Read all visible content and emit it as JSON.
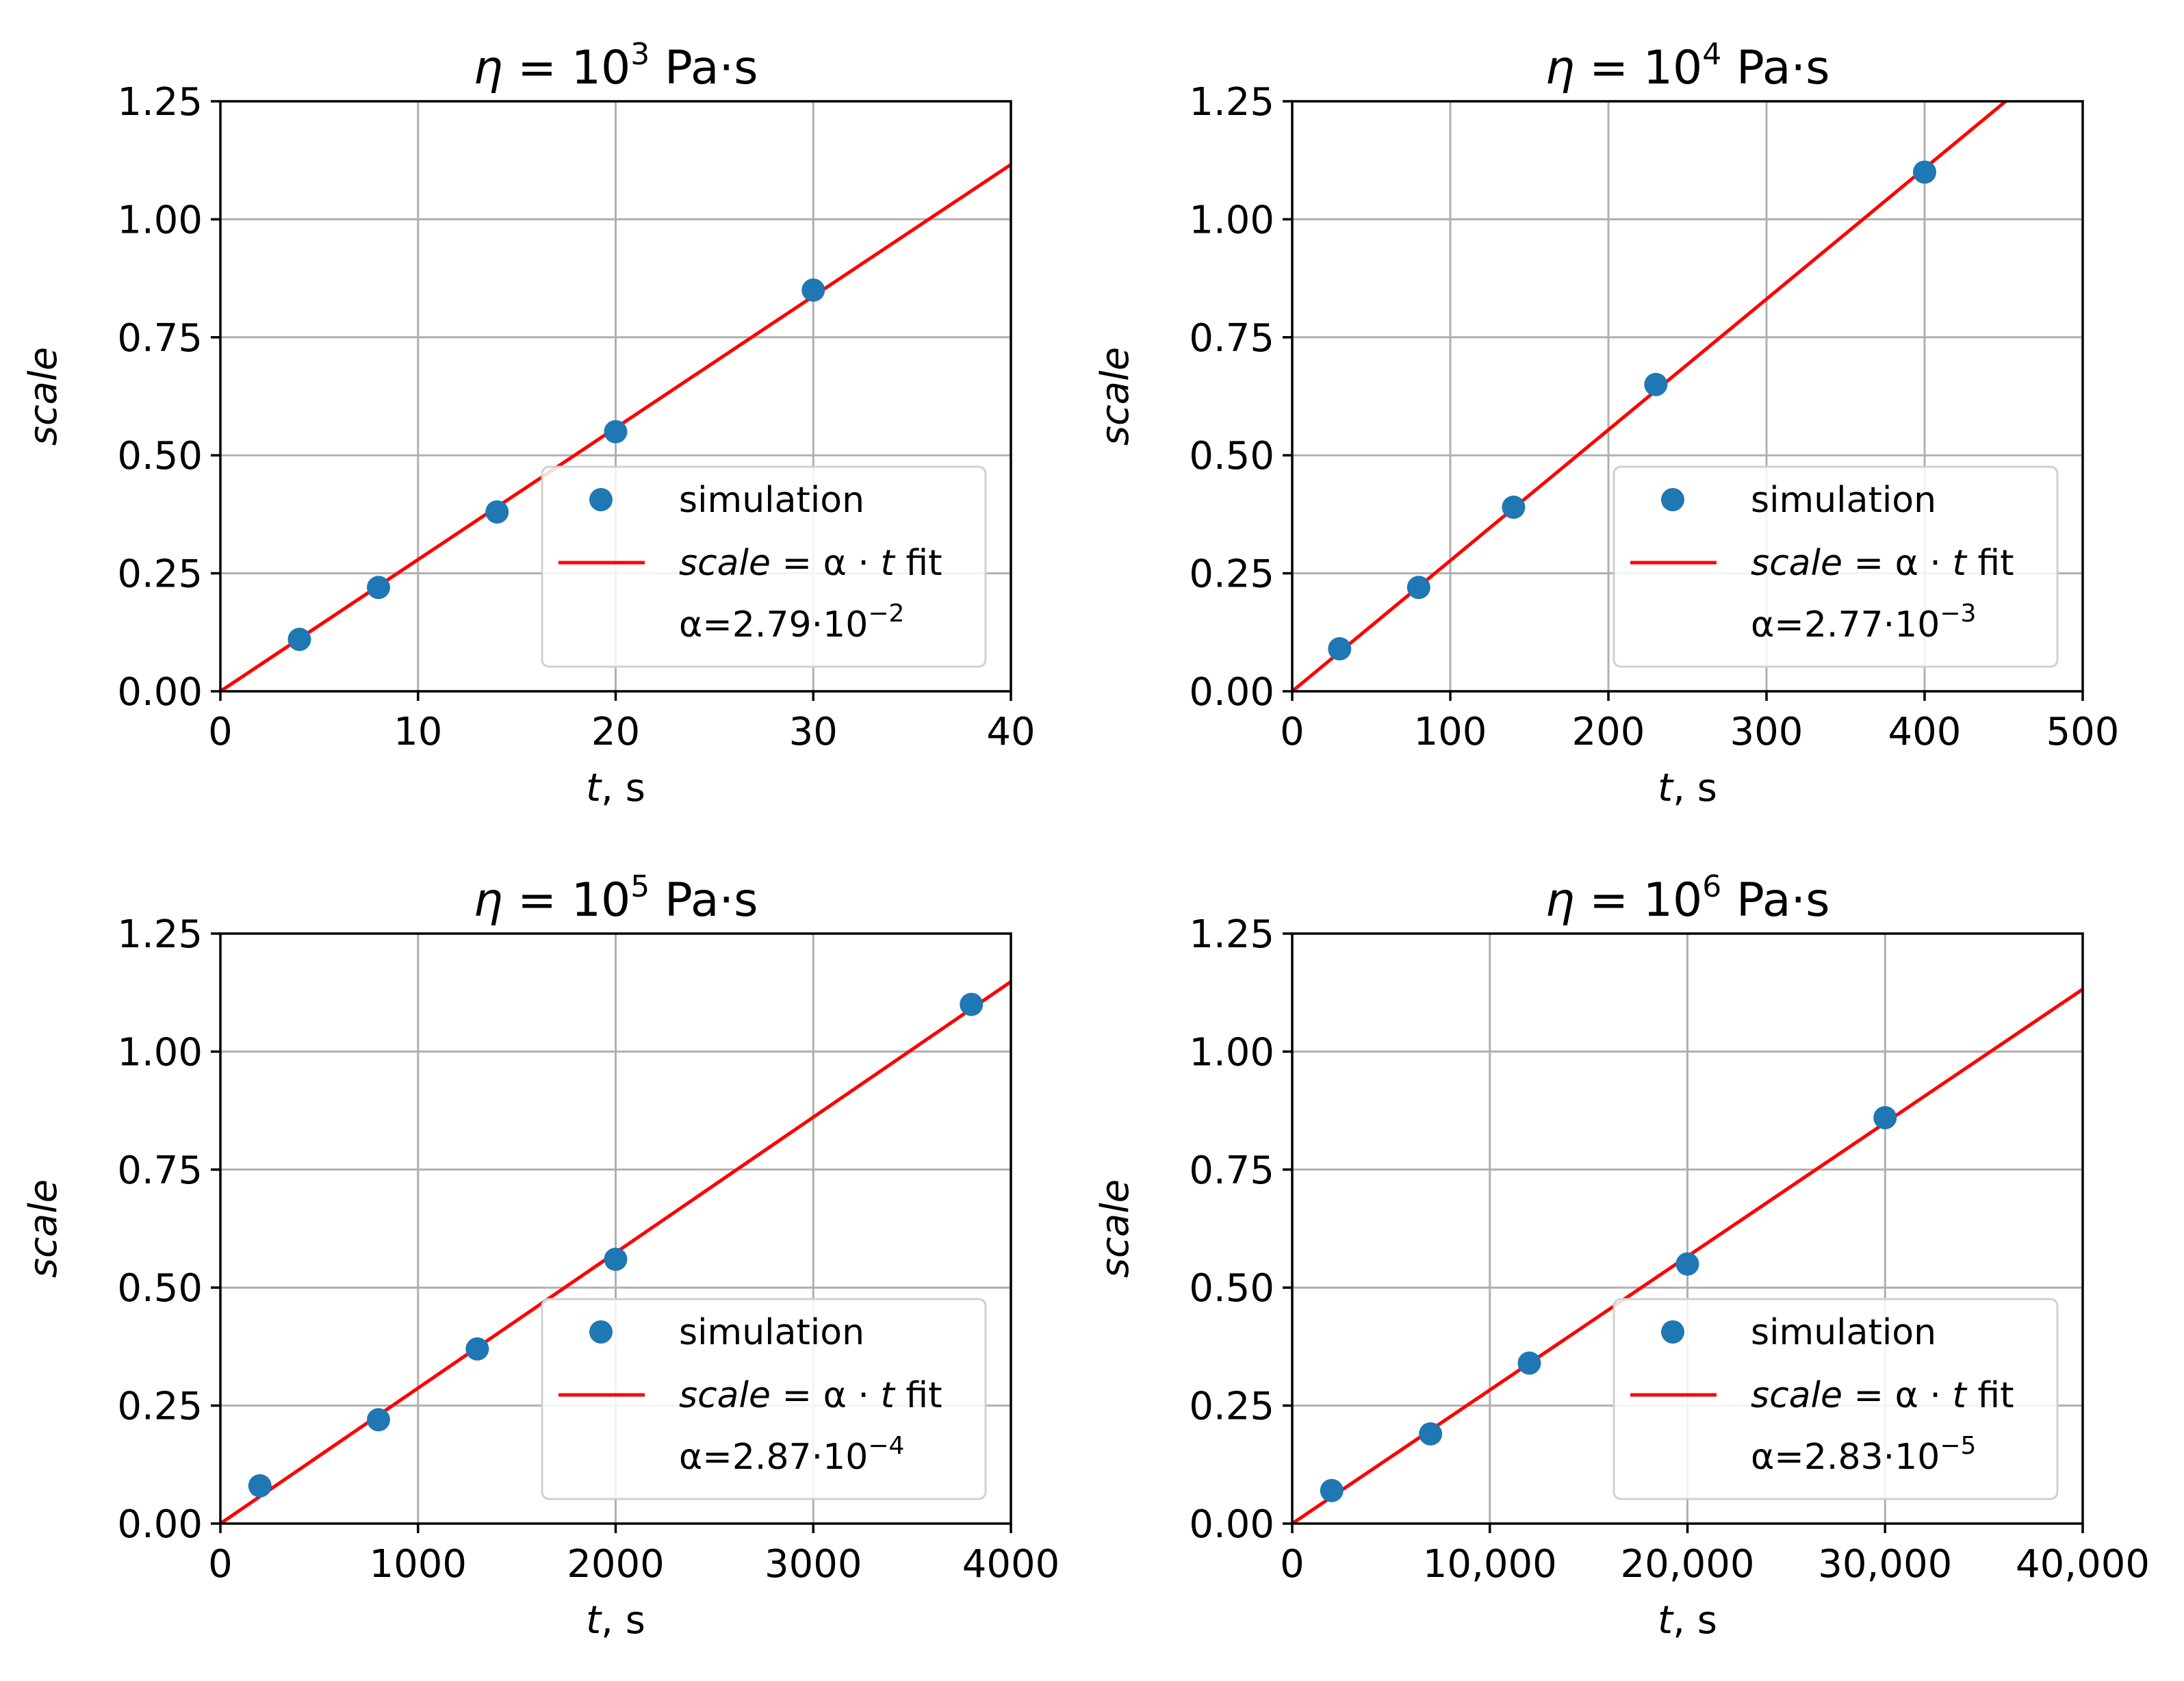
{
  "chart_data": [
    {
      "type": "scatter",
      "title": "η = 10³ Pa·s",
      "title_parts": {
        "symbol": "η",
        "mid": " = 10",
        "exp": "3",
        "unit": " Pa·s"
      },
      "xlabel": {
        "var": "t",
        "unit": ", s"
      },
      "ylabel": "scale",
      "xlim": [
        0,
        40
      ],
      "ylim": [
        0,
        1.25
      ],
      "xticks": [
        "0",
        "10",
        "20",
        "30",
        "40"
      ],
      "xtick_values": [
        0,
        10,
        20,
        30,
        40
      ],
      "yticks": [
        "0.00",
        "0.25",
        "0.50",
        "0.75",
        "1.00",
        "1.25"
      ],
      "ytick_values": [
        0,
        0.25,
        0.5,
        0.75,
        1.0,
        1.25
      ],
      "grid": true,
      "series": [
        {
          "name": "simulation",
          "type": "scatter",
          "color": "#1f77b4",
          "x": [
            4,
            8,
            14,
            20,
            30
          ],
          "y": [
            0.11,
            0.22,
            0.38,
            0.55,
            0.85
          ]
        },
        {
          "name": "scale = α · t fit",
          "type": "line",
          "color": "#ff0000",
          "slope": 0.0279
        }
      ],
      "legend": {
        "position": "lower-right",
        "simulation": "simulation",
        "fit_var": "scale",
        "fit_eq": " = α · ",
        "fit_t": "t",
        "fit_tail": " fit",
        "alpha_prefix": "α=2.79·10",
        "alpha_exp": "−2"
      }
    },
    {
      "type": "scatter",
      "title": "η = 10⁴ Pa·s",
      "title_parts": {
        "symbol": "η",
        "mid": " = 10",
        "exp": "4",
        "unit": " Pa·s"
      },
      "xlabel": {
        "var": "t",
        "unit": ", s"
      },
      "ylabel": "scale",
      "xlim": [
        0,
        500
      ],
      "ylim": [
        0,
        1.25
      ],
      "xticks": [
        "0",
        "100",
        "200",
        "300",
        "400",
        "500"
      ],
      "xtick_values": [
        0,
        100,
        200,
        300,
        400,
        500
      ],
      "yticks": [
        "0.00",
        "0.25",
        "0.50",
        "0.75",
        "1.00",
        "1.25"
      ],
      "ytick_values": [
        0,
        0.25,
        0.5,
        0.75,
        1.0,
        1.25
      ],
      "grid": true,
      "series": [
        {
          "name": "simulation",
          "type": "scatter",
          "color": "#1f77b4",
          "x": [
            30,
            80,
            140,
            230,
            400
          ],
          "y": [
            0.09,
            0.22,
            0.39,
            0.65,
            1.1
          ]
        },
        {
          "name": "scale = α · t fit",
          "type": "line",
          "color": "#ff0000",
          "slope": 0.00277
        }
      ],
      "legend": {
        "position": "lower-right",
        "simulation": "simulation",
        "fit_var": "scale",
        "fit_eq": " = α · ",
        "fit_t": "t",
        "fit_tail": " fit",
        "alpha_prefix": "α=2.77·10",
        "alpha_exp": "−3"
      }
    },
    {
      "type": "scatter",
      "title": "η = 10⁵ Pa·s",
      "title_parts": {
        "symbol": "η",
        "mid": " = 10",
        "exp": "5",
        "unit": " Pa·s"
      },
      "xlabel": {
        "var": "t",
        "unit": ", s"
      },
      "ylabel": "scale",
      "xlim": [
        0,
        4000
      ],
      "ylim": [
        0,
        1.25
      ],
      "xticks": [
        "0",
        "1000",
        "2000",
        "3000",
        "4000"
      ],
      "xtick_values": [
        0,
        1000,
        2000,
        3000,
        4000
      ],
      "yticks": [
        "0.00",
        "0.25",
        "0.50",
        "0.75",
        "1.00",
        "1.25"
      ],
      "ytick_values": [
        0,
        0.25,
        0.5,
        0.75,
        1.0,
        1.25
      ],
      "grid": true,
      "series": [
        {
          "name": "simulation",
          "type": "scatter",
          "color": "#1f77b4",
          "x": [
            200,
            800,
            1300,
            2000,
            3800
          ],
          "y": [
            0.08,
            0.22,
            0.37,
            0.56,
            1.1
          ]
        },
        {
          "name": "scale = α · t fit",
          "type": "line",
          "color": "#ff0000",
          "slope": 0.000287
        }
      ],
      "legend": {
        "position": "lower-right",
        "simulation": "simulation",
        "fit_var": "scale",
        "fit_eq": " = α · ",
        "fit_t": "t",
        "fit_tail": " fit",
        "alpha_prefix": "α=2.87·10",
        "alpha_exp": "−4"
      }
    },
    {
      "type": "scatter",
      "title": "η = 10⁶ Pa·s",
      "title_parts": {
        "symbol": "η",
        "mid": " = 10",
        "exp": "6",
        "unit": " Pa·s"
      },
      "xlabel": {
        "var": "t",
        "unit": ", s"
      },
      "ylabel": "scale",
      "xlim": [
        0,
        40000
      ],
      "ylim": [
        0,
        1.25
      ],
      "xticks": [
        "0",
        "10,000",
        "20,000",
        "30,000",
        "40,000"
      ],
      "xtick_values": [
        0,
        10000,
        20000,
        30000,
        40000
      ],
      "yticks": [
        "0.00",
        "0.25",
        "0.50",
        "0.75",
        "1.00",
        "1.25"
      ],
      "ytick_values": [
        0,
        0.25,
        0.5,
        0.75,
        1.0,
        1.25
      ],
      "grid": true,
      "series": [
        {
          "name": "simulation",
          "type": "scatter",
          "color": "#1f77b4",
          "x": [
            2000,
            7000,
            12000,
            20000,
            30000
          ],
          "y": [
            0.07,
            0.19,
            0.34,
            0.55,
            0.86
          ]
        },
        {
          "name": "scale = α · t fit",
          "type": "line",
          "color": "#ff0000",
          "slope": 2.83e-05
        }
      ],
      "legend": {
        "position": "lower-right",
        "simulation": "simulation",
        "fit_var": "scale",
        "fit_eq": " = α · ",
        "fit_t": "t",
        "fit_tail": " fit",
        "alpha_prefix": "α=2.83·10",
        "alpha_exp": "−5"
      }
    }
  ]
}
